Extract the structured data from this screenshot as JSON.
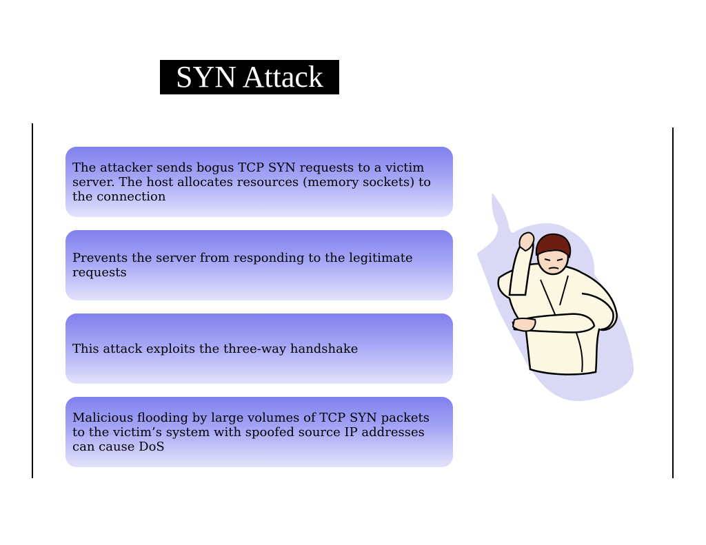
{
  "slide": {
    "title": "SYN Attack",
    "bullets": [
      "The attacker sends bogus TCP SYN requests to a victim server. The host allocates resources (memory sockets) to the connection",
      "Prevents the server from responding to the legitimate requests",
      "This attack exploits the three-way handshake",
      "Malicious flooding by large volumes of TCP SYN packets to the victim’s system with spoofed source IP addresses can cause DoS"
    ]
  },
  "illustration": {
    "name": "karate-figure-clipart"
  },
  "colors": {
    "title_bg": "#000000",
    "title_text": "#ffffff",
    "box_top": "#8080ee",
    "box_bottom": "#e3e3fc",
    "splash": "#dcdcf6"
  }
}
